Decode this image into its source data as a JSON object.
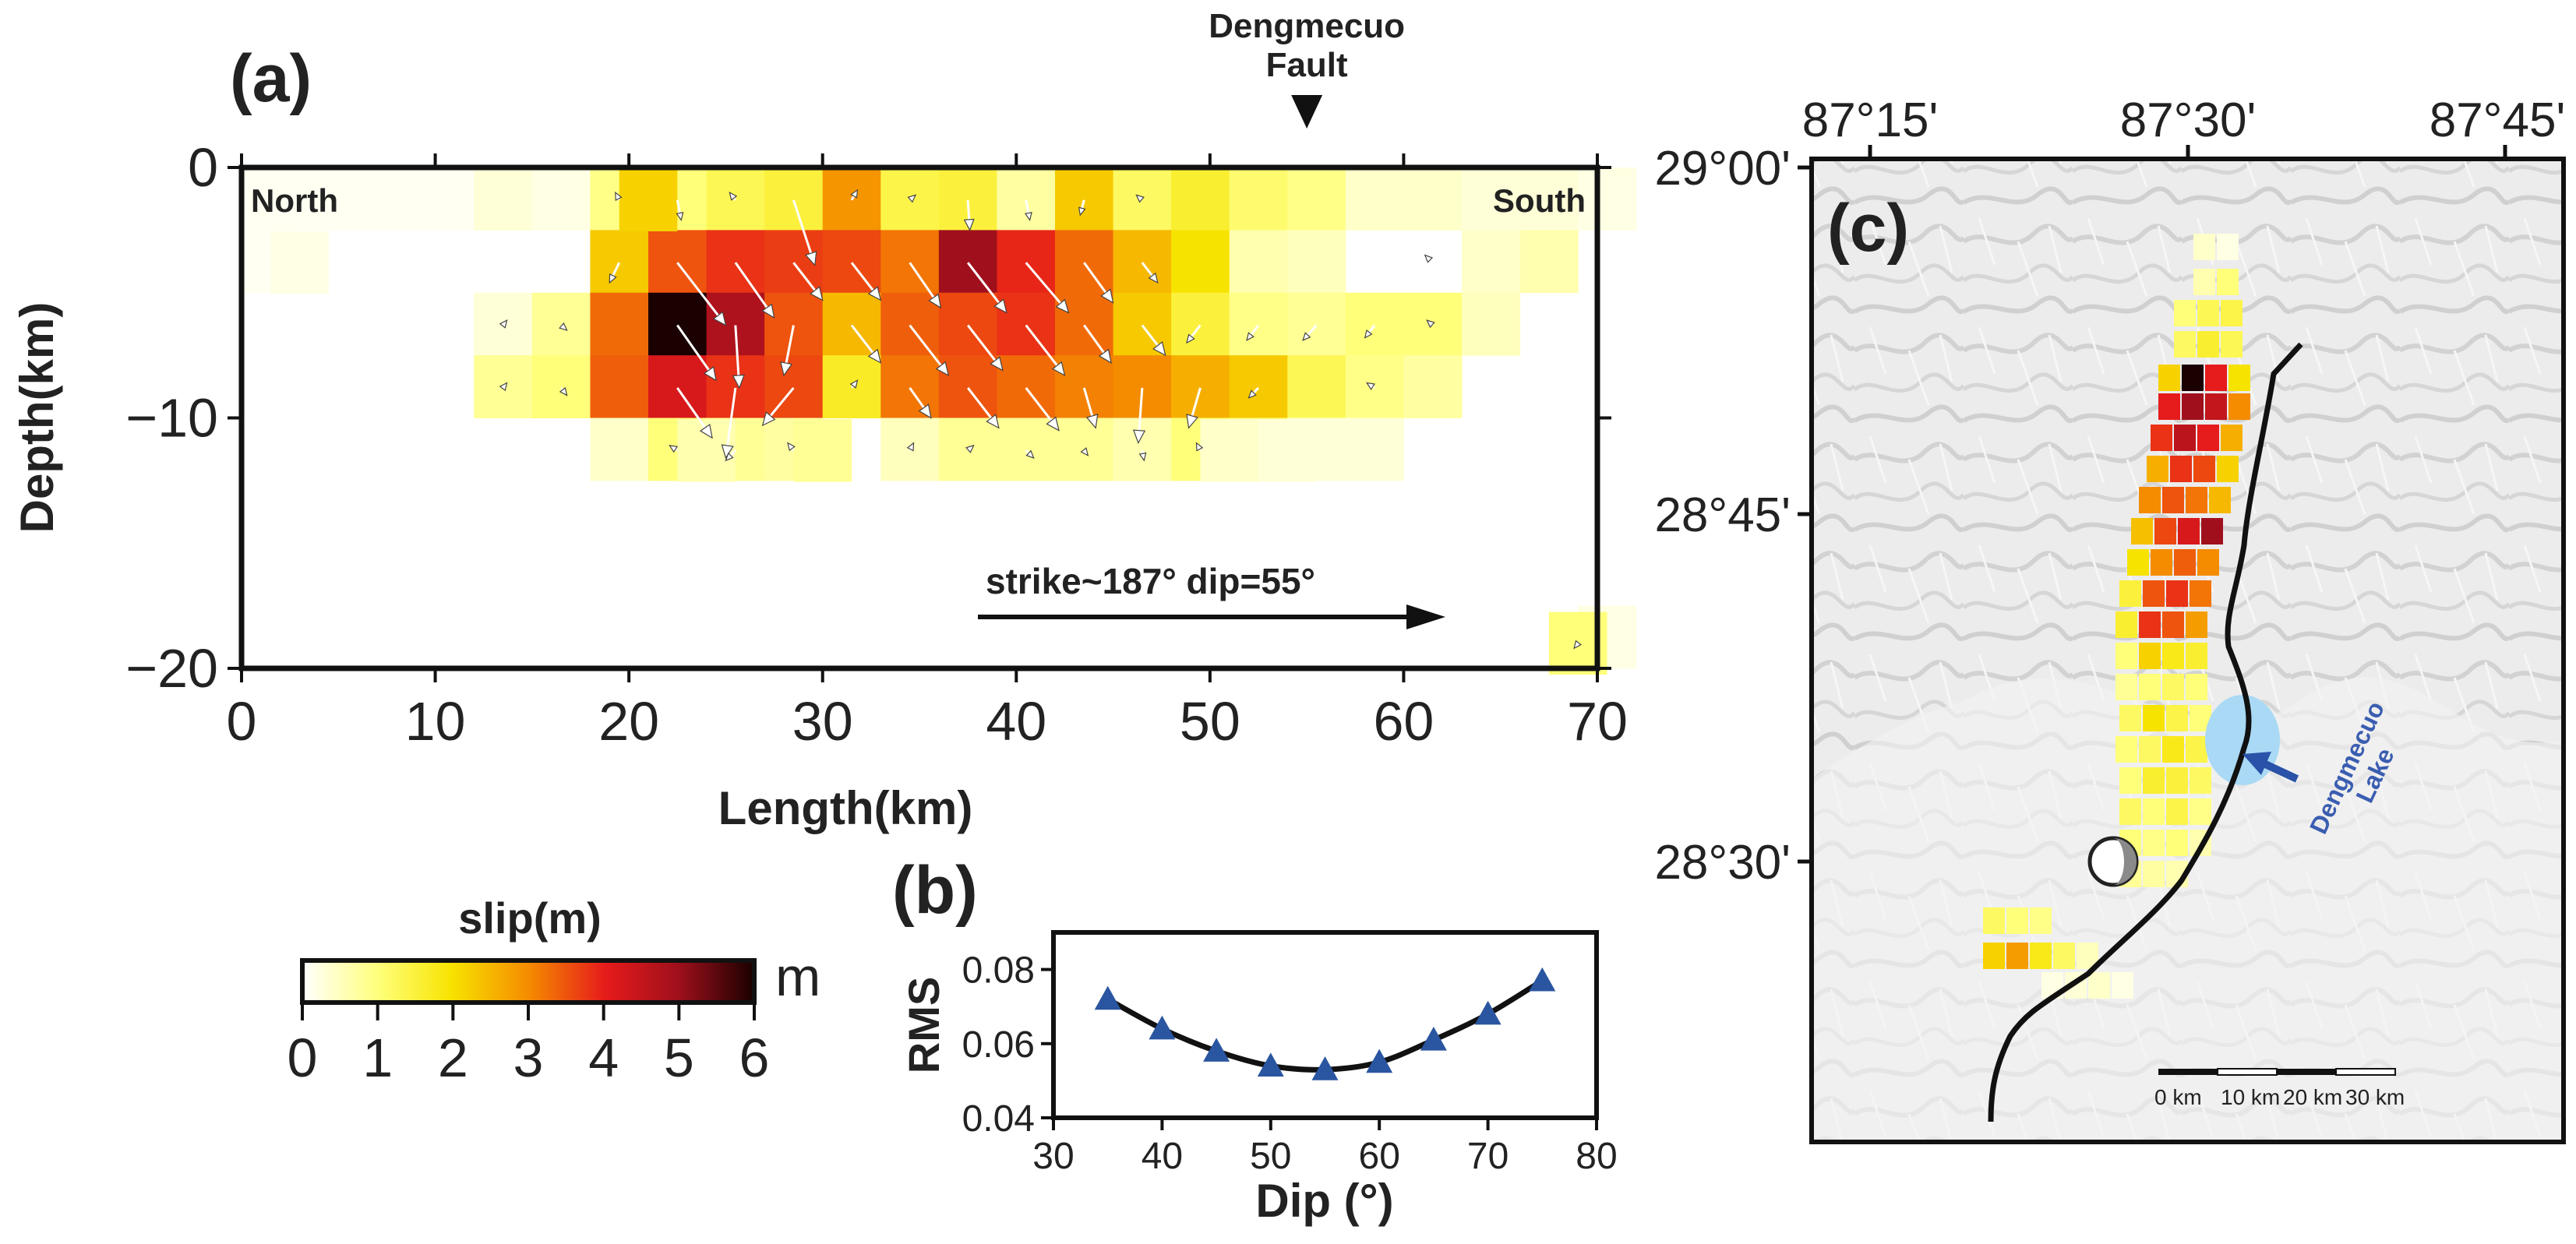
{
  "chart_data": [
    {
      "type": "heatmap",
      "panel_label": "(a)",
      "description_text": {
        "left_end": "North",
        "right_end": "South",
        "strike_dip": "strike~187° dip=55°",
        "fault_label_line1": "Dengmecuo",
        "fault_label_line2": "Fault"
      },
      "fault_marker_length_km": 55,
      "xlabel": "Length(km)",
      "ylabel": "Depth(km)",
      "xlim": [
        0,
        70
      ],
      "ylim": [
        -20,
        0
      ],
      "xticks": [
        0,
        10,
        20,
        30,
        40,
        50,
        60,
        70
      ],
      "xtick_labels": [
        "0",
        "10",
        "20",
        "30",
        "40",
        "50",
        "60",
        "70"
      ],
      "yticks": [
        0,
        -10,
        -20
      ],
      "ytick_labels": [
        "0",
        "−10",
        "−20"
      ],
      "patch_size_km": [
        3,
        2.5
      ],
      "slip_unit": "m",
      "slip_m_grid_rows_top_to_bottom": [
        [
          0.1,
          0.1,
          0.1,
          0.1,
          0.3,
          0.2,
          0.9,
          1.0,
          1.3,
          1.5,
          2.9,
          1.4,
          1.5,
          0.7,
          2.3,
          1.2,
          1.6,
          1.1,
          0.9,
          0.4,
          0.4,
          0.3,
          0.3,
          0.2
        ],
        [
          0.1,
          0.0,
          0.0,
          0.0,
          0.0,
          0.0,
          2.3,
          3.5,
          3.8,
          3.7,
          3.6,
          3.2,
          5.0,
          3.9,
          3.3,
          2.5,
          2.0,
          0.6,
          0.5,
          0.0,
          0.0,
          0.4,
          0.6,
          0.0
        ],
        [
          0.0,
          0.0,
          0.0,
          0.0,
          0.3,
          0.8,
          3.3,
          6.0,
          4.8,
          3.5,
          2.5,
          3.4,
          3.6,
          3.8,
          3.3,
          2.3,
          1.5,
          0.9,
          0.8,
          1.0,
          1.0,
          0.5,
          0.0,
          0.0
        ],
        [
          0.0,
          0.0,
          0.0,
          0.0,
          0.8,
          1.0,
          3.4,
          4.2,
          3.8,
          3.6,
          1.7,
          3.2,
          3.5,
          3.3,
          3.1,
          3.0,
          2.6,
          2.3,
          1.3,
          0.9,
          0.7,
          0.0,
          0.0,
          0.0
        ],
        [
          0.0,
          0.0,
          0.0,
          0.0,
          0.0,
          0.0,
          0.4,
          1.0,
          0.8,
          0.7,
          0.0,
          0.5,
          0.8,
          0.8,
          0.8,
          0.6,
          1.0,
          0.9,
          0.3,
          0.3,
          0.0,
          0.0,
          0.0,
          0.0
        ],
        [
          0.0,
          0.0,
          0.0,
          0.0,
          0.0,
          0.0,
          0.0,
          0.0,
          0.0,
          0.0,
          0.0,
          0.0,
          0.0,
          0.0,
          0.0,
          0.0,
          0.0,
          0.0,
          0.0,
          0.0,
          0.0,
          0.0,
          0.0,
          0.0
        ],
        [
          0.0,
          0.0,
          0.0,
          0.0,
          0.0,
          0.0,
          0.0,
          0.0,
          0.0,
          0.0,
          0.0,
          0.0,
          0.0,
          0.0,
          0.0,
          0.0,
          0.0,
          0.0,
          0.0,
          0.0,
          0.0,
          0.0,
          0.0,
          0.0
        ],
        [
          0.0,
          0.0,
          0.0,
          0.0,
          0.0,
          0.0,
          0.0,
          0.0,
          0.0,
          0.0,
          0.0,
          0.0,
          0.0,
          0.0,
          0.0,
          0.0,
          0.0,
          0.0,
          0.0,
          0.0,
          0.0,
          0.0,
          0.0,
          0.2
        ]
      ],
      "slip_m_extra_patches": [
        {
          "length_km": 69,
          "depth_km": -19.0,
          "slip_m": 1.0
        },
        {
          "length_km": 21,
          "depth_km": -1.3,
          "slip_m": 2.2
        },
        {
          "length_km": 30,
          "depth_km": -11.3,
          "slip_m": 0.8
        },
        {
          "length_km": 24,
          "depth_km": -11.3,
          "slip_m": 0.6
        },
        {
          "length_km": 51,
          "depth_km": -11.3,
          "slip_m": 0.4
        },
        {
          "length_km": 54,
          "depth_km": -11.3,
          "slip_m": 0.3
        },
        {
          "length_km": 3,
          "depth_km": -3.8,
          "slip_m": 0.2
        }
      ],
      "rake_vectors": [
        {
          "x_km": 19.5,
          "y_km": -1.3,
          "dx": -0.2,
          "dy": 0.3
        },
        {
          "x_km": 22.5,
          "y_km": -1.3,
          "dx": 0.2,
          "dy": -0.8
        },
        {
          "x_km": 25.5,
          "y_km": -1.3,
          "dx": -0.3,
          "dy": 0.3
        },
        {
          "x_km": 31.5,
          "y_km": -1.3,
          "dx": 0.3,
          "dy": 0.4
        },
        {
          "x_km": 34.5,
          "y_km": -1.3,
          "dx": 0.3,
          "dy": 0.2
        },
        {
          "x_km": 37.5,
          "y_km": -1.3,
          "dx": 0.1,
          "dy": -1.2
        },
        {
          "x_km": 40.5,
          "y_km": -1.3,
          "dx": 0.2,
          "dy": -0.8
        },
        {
          "x_km": 43.5,
          "y_km": -1.3,
          "dx": -0.2,
          "dy": -0.6
        },
        {
          "x_km": 46.5,
          "y_km": -1.3,
          "dx": -0.3,
          "dy": 0.2
        },
        {
          "x_km": 28.5,
          "y_km": -1.3,
          "dx": 1.1,
          "dy": -2.6
        },
        {
          "x_km": 28.5,
          "y_km": -3.8,
          "dx": 1.5,
          "dy": -1.5
        },
        {
          "x_km": 19.5,
          "y_km": -3.8,
          "dx": -0.5,
          "dy": -0.8
        },
        {
          "x_km": 22.5,
          "y_km": -3.8,
          "dx": 2.5,
          "dy": -2.5
        },
        {
          "x_km": 25.5,
          "y_km": -3.8,
          "dx": 2.0,
          "dy": -2.2
        },
        {
          "x_km": 31.5,
          "y_km": -3.8,
          "dx": 1.5,
          "dy": -1.5
        },
        {
          "x_km": 34.5,
          "y_km": -3.8,
          "dx": 1.6,
          "dy": -1.8
        },
        {
          "x_km": 37.5,
          "y_km": -3.8,
          "dx": 2.0,
          "dy": -2.0
        },
        {
          "x_km": 40.5,
          "y_km": -3.8,
          "dx": 2.2,
          "dy": -2.0
        },
        {
          "x_km": 43.5,
          "y_km": -3.8,
          "dx": 1.5,
          "dy": -1.6
        },
        {
          "x_km": 46.5,
          "y_km": -3.8,
          "dx": 0.8,
          "dy": -0.8
        },
        {
          "x_km": 61.5,
          "y_km": -3.8,
          "dx": -0.4,
          "dy": 0.3
        },
        {
          "x_km": 13.5,
          "y_km": -6.3,
          "dx": 0.2,
          "dy": 0.2
        },
        {
          "x_km": 16.5,
          "y_km": -6.3,
          "dx": 0.3,
          "dy": -0.2
        },
        {
          "x_km": 22.5,
          "y_km": -6.3,
          "dx": 2.0,
          "dy": -2.2
        },
        {
          "x_km": 25.5,
          "y_km": -6.3,
          "dx": 0.2,
          "dy": -2.5
        },
        {
          "x_km": 28.5,
          "y_km": -6.3,
          "dx": -0.5,
          "dy": -2.0
        },
        {
          "x_km": 31.5,
          "y_km": -6.3,
          "dx": 1.5,
          "dy": -1.5
        },
        {
          "x_km": 34.5,
          "y_km": -6.3,
          "dx": 2.0,
          "dy": -2.0
        },
        {
          "x_km": 37.5,
          "y_km": -6.3,
          "dx": 1.8,
          "dy": -1.8
        },
        {
          "x_km": 40.5,
          "y_km": -6.3,
          "dx": 2.0,
          "dy": -2.0
        },
        {
          "x_km": 43.5,
          "y_km": -6.3,
          "dx": 1.4,
          "dy": -1.5
        },
        {
          "x_km": 46.5,
          "y_km": -6.3,
          "dx": 1.2,
          "dy": -1.2
        },
        {
          "x_km": 49.5,
          "y_km": -6.3,
          "dx": -0.7,
          "dy": -0.7
        },
        {
          "x_km": 52.5,
          "y_km": -6.3,
          "dx": -0.6,
          "dy": -0.6
        },
        {
          "x_km": 55.5,
          "y_km": -6.3,
          "dx": -0.7,
          "dy": -0.6
        },
        {
          "x_km": 58.5,
          "y_km": -6.3,
          "dx": -0.5,
          "dy": -0.5
        },
        {
          "x_km": 61.5,
          "y_km": -6.3,
          "dx": -0.3,
          "dy": 0.2
        },
        {
          "x_km": 13.5,
          "y_km": -8.8,
          "dx": 0.2,
          "dy": 0.2
        },
        {
          "x_km": 16.5,
          "y_km": -8.8,
          "dx": 0.3,
          "dy": -0.3
        },
        {
          "x_km": 22.5,
          "y_km": -8.8,
          "dx": 1.8,
          "dy": -2.0
        },
        {
          "x_km": 25.5,
          "y_km": -8.8,
          "dx": -0.5,
          "dy": -2.8
        },
        {
          "x_km": 28.5,
          "y_km": -8.8,
          "dx": -1.6,
          "dy": -1.5
        },
        {
          "x_km": 31.5,
          "y_km": -8.8,
          "dx": 0.3,
          "dy": 0.3
        },
        {
          "x_km": 34.5,
          "y_km": -8.8,
          "dx": 1.1,
          "dy": -1.2
        },
        {
          "x_km": 37.5,
          "y_km": -8.8,
          "dx": 1.6,
          "dy": -1.6
        },
        {
          "x_km": 40.5,
          "y_km": -8.8,
          "dx": 1.7,
          "dy": -1.7
        },
        {
          "x_km": 43.5,
          "y_km": -8.8,
          "dx": 0.6,
          "dy": -1.6
        },
        {
          "x_km": 46.5,
          "y_km": -8.8,
          "dx": -0.2,
          "dy": -2.2
        },
        {
          "x_km": 49.5,
          "y_km": -8.8,
          "dx": -0.6,
          "dy": -1.6
        },
        {
          "x_km": 52.5,
          "y_km": -8.8,
          "dx": -0.5,
          "dy": -0.4
        },
        {
          "x_km": 58.5,
          "y_km": -8.8,
          "dx": -0.4,
          "dy": 0.2
        },
        {
          "x_km": 25.5,
          "y_km": -11.3,
          "dx": -0.5,
          "dy": -0.4
        },
        {
          "x_km": 22.5,
          "y_km": -11.3,
          "dx": -0.4,
          "dy": 0.2
        },
        {
          "x_km": 28.5,
          "y_km": -11.3,
          "dx": -0.3,
          "dy": 0.3
        },
        {
          "x_km": 34.5,
          "y_km": -11.3,
          "dx": 0.2,
          "dy": 0.3
        },
        {
          "x_km": 37.5,
          "y_km": -11.3,
          "dx": 0.3,
          "dy": 0.2
        },
        {
          "x_km": 40.5,
          "y_km": -11.3,
          "dx": 0.4,
          "dy": -0.3
        },
        {
          "x_km": 43.5,
          "y_km": -11.3,
          "dx": 0.2,
          "dy": -0.2
        },
        {
          "x_km": 46.5,
          "y_km": -11.3,
          "dx": 0.1,
          "dy": -0.4
        },
        {
          "x_km": 49.5,
          "y_km": -11.3,
          "dx": -0.2,
          "dy": 0.3
        },
        {
          "x_km": 69.0,
          "y_km": -19.0,
          "dx": -0.2,
          "dy": -0.2
        }
      ]
    },
    {
      "type": "line",
      "panel_label": "(b)",
      "xlabel": "Dip (°)",
      "ylabel": "RMS",
      "x": [
        35,
        40,
        45,
        50,
        55,
        60,
        65,
        70,
        75
      ],
      "y": [
        0.072,
        0.064,
        0.058,
        0.054,
        0.053,
        0.055,
        0.061,
        0.068,
        0.077
      ],
      "xlim": [
        30,
        80
      ],
      "ylim": [
        0.04,
        0.09
      ],
      "xticks": [
        30,
        40,
        50,
        60,
        70,
        80
      ],
      "xtick_labels": [
        "30",
        "40",
        "50",
        "60",
        "70",
        "80"
      ],
      "yticks": [
        0.04,
        0.06,
        0.08
      ],
      "ytick_labels": [
        "0.04",
        "0.06",
        "0.08"
      ],
      "marker": "triangle",
      "marker_color": "#2a55a0"
    },
    {
      "type": "heatmap",
      "panel_label": "(c)",
      "description": "map view of fault-plane slip on a shaded relief background",
      "xtick_labels": [
        "87°15'",
        "87°30'",
        "87°45'"
      ],
      "ytick_labels": [
        "29°00'",
        "28°45'",
        "28°30'"
      ],
      "lake_label_line1": "Dengmecuo",
      "lake_label_line2": "Lake",
      "scale_bar_labels": [
        "0 km",
        "10 km",
        "20 km",
        "30 km"
      ]
    }
  ],
  "colorbar": {
    "title": "slip(m)",
    "unit": "m",
    "range": [
      0,
      6
    ],
    "tick_labels": [
      "0",
      "1",
      "2",
      "3",
      "4",
      "5",
      "6"
    ],
    "colors": [
      "#ffffff",
      "#ffff7a",
      "#f7e300",
      "#f58c00",
      "#e61b1b",
      "#a0101c",
      "#1a0000"
    ]
  }
}
